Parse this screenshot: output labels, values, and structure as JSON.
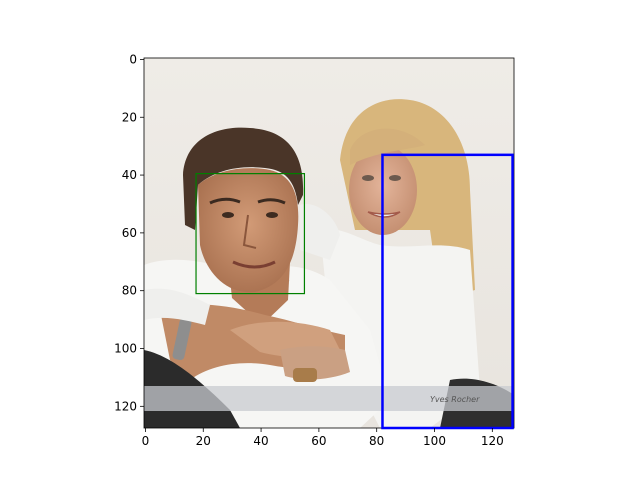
{
  "figure": {
    "background": "#ffffff",
    "image": {
      "description_colors": {
        "backdrop": "#ece8e1",
        "man_hair": "#4a3528",
        "woman_hair": "#d9b77c",
        "shirt_white": "#f6f6f4",
        "skin": "#c9906c",
        "dark_pants": "#2b2b2b",
        "watermark_band": "#c8cbd0"
      },
      "watermark_text": "Yves Rocher"
    },
    "axes": {
      "x_ticks": [
        "0",
        "20",
        "40",
        "60",
        "80",
        "100",
        "120"
      ],
      "y_ticks": [
        "0",
        "20",
        "40",
        "60",
        "80",
        "100",
        "120"
      ],
      "x_range": [
        -0.5,
        127.5
      ],
      "y_range": [
        -0.5,
        127.5
      ],
      "y_inverted": true
    },
    "boxes": [
      {
        "label": "green-box",
        "color": "#008000",
        "x0": 17.5,
        "y0": 39.5,
        "x1": 55,
        "y1": 81
      },
      {
        "label": "blue-box",
        "color": "#0000ff",
        "x0": 82,
        "y0": 33,
        "x1": 127,
        "y1": 127.5
      }
    ]
  }
}
